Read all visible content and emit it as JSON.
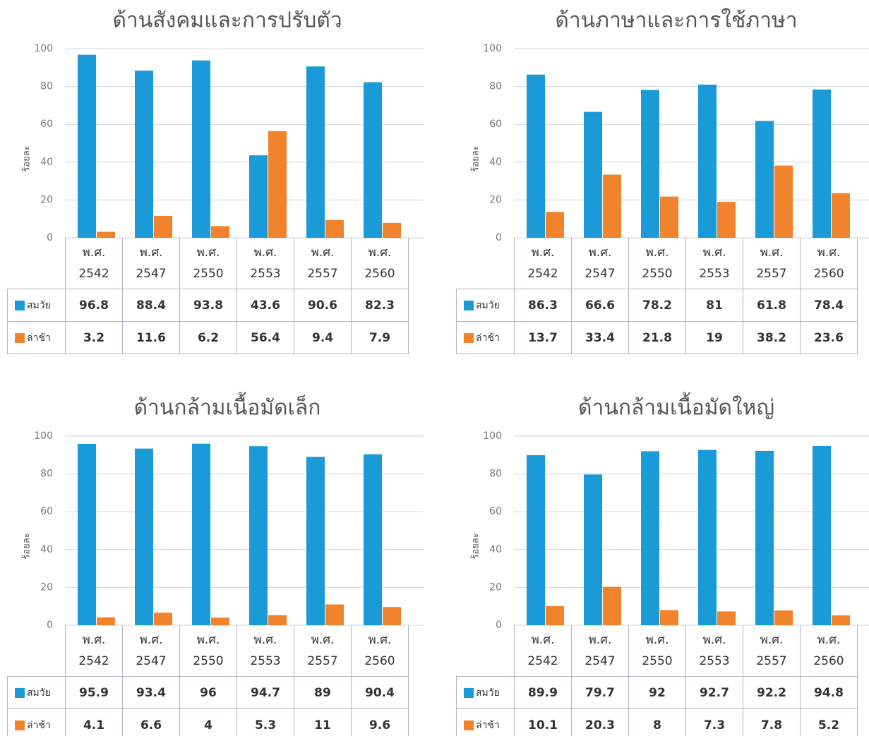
{
  "chart_data": [
    {
      "type": "bar",
      "title": "ด้านสังคมและการปรับตัว",
      "y_label": "ร้อยละ",
      "categories": [
        "พ.ศ. 2542",
        "พ.ศ. 2547",
        "พ.ศ. 2550",
        "พ.ศ. 2553",
        "พ.ศ. 2557",
        "พ.ศ. 2560"
      ],
      "series": [
        {
          "name": "สมวัย",
          "color": "#1a9ad6",
          "values": [
            96.8,
            88.4,
            93.8,
            43.6,
            90.6,
            82.3
          ]
        },
        {
          "name": "ล่าช้า",
          "color": "#f0832b",
          "values": [
            3.2,
            11.6,
            6.2,
            56.4,
            9.4,
            7.9
          ]
        }
      ],
      "ylim": [
        0,
        100
      ],
      "yticks": [
        0,
        20,
        40,
        60,
        80,
        100
      ],
      "grid": true
    },
    {
      "type": "bar",
      "title": "ด้านภาษาและการใช้ภาษา",
      "y_label": "ร้อยละ",
      "categories": [
        "พ.ศ. 2542",
        "พ.ศ. 2547",
        "พ.ศ. 2550",
        "พ.ศ. 2553",
        "พ.ศ. 2557",
        "พ.ศ. 2560"
      ],
      "series": [
        {
          "name": "สมวัย",
          "color": "#1a9ad6",
          "values": [
            86.3,
            66.6,
            78.2,
            81,
            61.8,
            78.4
          ]
        },
        {
          "name": "ล่าช้า",
          "color": "#f0832b",
          "values": [
            13.7,
            33.4,
            21.8,
            19,
            38.2,
            23.6
          ]
        }
      ],
      "ylim": [
        0,
        100
      ],
      "yticks": [
        0,
        20,
        40,
        60,
        80,
        100
      ],
      "grid": true
    },
    {
      "type": "bar",
      "title": "ด้านกล้ามเนื้อมัดเล็ก",
      "y_label": "ร้อยละ",
      "categories": [
        "พ.ศ. 2542",
        "พ.ศ. 2547",
        "พ.ศ. 2550",
        "พ.ศ. 2553",
        "พ.ศ. 2557",
        "พ.ศ. 2560"
      ],
      "series": [
        {
          "name": "สมวัย",
          "color": "#1a9ad6",
          "values": [
            95.9,
            93.4,
            96,
            94.7,
            89,
            90.4
          ]
        },
        {
          "name": "ล่าช้า",
          "color": "#f0832b",
          "values": [
            4.1,
            6.6,
            4,
            5.3,
            11,
            9.6
          ]
        }
      ],
      "ylim": [
        0,
        100
      ],
      "yticks": [
        0,
        20,
        40,
        60,
        80,
        100
      ],
      "grid": true
    },
    {
      "type": "bar",
      "title": "ด้านกล้ามเนื้อมัดใหญ่",
      "y_label": "ร้อยละ",
      "categories": [
        "พ.ศ. 2542",
        "พ.ศ. 2547",
        "พ.ศ. 2550",
        "พ.ศ. 2553",
        "พ.ศ. 2557",
        "พ.ศ. 2560"
      ],
      "series": [
        {
          "name": "สมวัย",
          "color": "#1a9ad6",
          "values": [
            89.9,
            79.7,
            92,
            92.7,
            92.2,
            94.8
          ]
        },
        {
          "name": "ล่าช้า",
          "color": "#f0832b",
          "values": [
            10.1,
            20.3,
            8,
            7.3,
            7.8,
            5.2
          ]
        }
      ],
      "ylim": [
        0,
        100
      ],
      "yticks": [
        0,
        20,
        40,
        60,
        80,
        100
      ],
      "grid": true
    }
  ]
}
